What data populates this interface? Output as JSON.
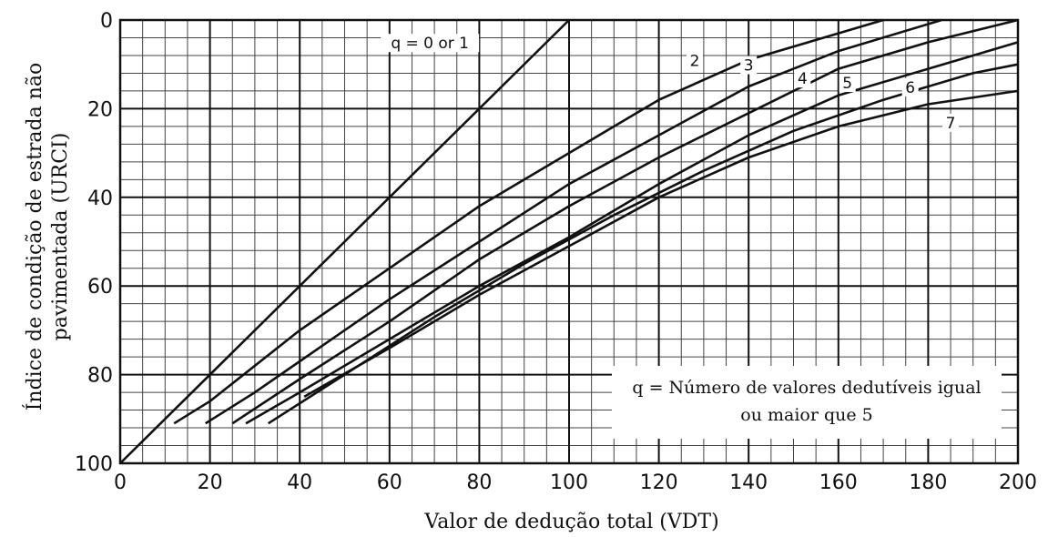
{
  "chart_data": {
    "type": "line",
    "xlabel": "Valor de dedução total (VDT)",
    "ylabel_lines": [
      "Índice de condição de estrada não",
      "pavimentada (URCI)"
    ],
    "xlim": [
      0,
      200
    ],
    "ylim": [
      0,
      100
    ],
    "y_inverted": true,
    "x_ticks": [
      0,
      20,
      40,
      60,
      80,
      100,
      120,
      140,
      160,
      180,
      200
    ],
    "y_ticks": [
      0,
      20,
      40,
      60,
      80,
      100
    ],
    "grid": true,
    "minor_grid_step_x": 5,
    "minor_grid_step_y": 4,
    "annotation_lines": [
      "q = Número de valores dedutíveis igual",
      "ou maior que 5"
    ],
    "series": [
      {
        "name": "q = 0 or 1",
        "points": [
          [
            0,
            100
          ],
          [
            100,
            0
          ]
        ]
      },
      {
        "name": "2",
        "points": [
          [
            12,
            91
          ],
          [
            20,
            86
          ],
          [
            40,
            70
          ],
          [
            60,
            56
          ],
          [
            80,
            42
          ],
          [
            100,
            30
          ],
          [
            120,
            18
          ],
          [
            140,
            9
          ],
          [
            160,
            3
          ],
          [
            170,
            0
          ]
        ]
      },
      {
        "name": "3",
        "points": [
          [
            19,
            91
          ],
          [
            30,
            84
          ],
          [
            40,
            77
          ],
          [
            60,
            63
          ],
          [
            80,
            50
          ],
          [
            100,
            37
          ],
          [
            120,
            26
          ],
          [
            140,
            15
          ],
          [
            160,
            7
          ],
          [
            183,
            0
          ]
        ]
      },
      {
        "name": "4",
        "points": [
          [
            25,
            91
          ],
          [
            40,
            81
          ],
          [
            60,
            68
          ],
          [
            80,
            54
          ],
          [
            100,
            42
          ],
          [
            120,
            31
          ],
          [
            140,
            21
          ],
          [
            160,
            11
          ],
          [
            180,
            5
          ],
          [
            200,
            0
          ]
        ]
      },
      {
        "name": "5",
        "points": [
          [
            28,
            91
          ],
          [
            40,
            84
          ],
          [
            60,
            72
          ],
          [
            80,
            60
          ],
          [
            100,
            49
          ],
          [
            120,
            37
          ],
          [
            140,
            26
          ],
          [
            160,
            17
          ],
          [
            180,
            11
          ],
          [
            200,
            5
          ]
        ]
      },
      {
        "name": "6",
        "points": [
          [
            33,
            91
          ],
          [
            50,
            80
          ],
          [
            70,
            67
          ],
          [
            90,
            55
          ],
          [
            110,
            44
          ],
          [
            130,
            34
          ],
          [
            150,
            25
          ],
          [
            170,
            18
          ],
          [
            190,
            12
          ],
          [
            200,
            10
          ]
        ]
      },
      {
        "name": "7",
        "points": [
          [
            41,
            85
          ],
          [
            60,
            74
          ],
          [
            80,
            62
          ],
          [
            100,
            51
          ],
          [
            120,
            40
          ],
          [
            140,
            31
          ],
          [
            160,
            24
          ],
          [
            180,
            19
          ],
          [
            200,
            16
          ]
        ]
      }
    ],
    "curve_labels": [
      {
        "text": "q = 0 or 1",
        "x": 69,
        "y": 6
      },
      {
        "text": "2",
        "x": 128,
        "y": 10
      },
      {
        "text": "3",
        "x": 140,
        "y": 11
      },
      {
        "text": "4",
        "x": 152,
        "y": 14
      },
      {
        "text": "5",
        "x": 162,
        "y": 15
      },
      {
        "text": "6",
        "x": 176,
        "y": 16
      },
      {
        "text": "7",
        "x": 185,
        "y": 24
      }
    ]
  }
}
